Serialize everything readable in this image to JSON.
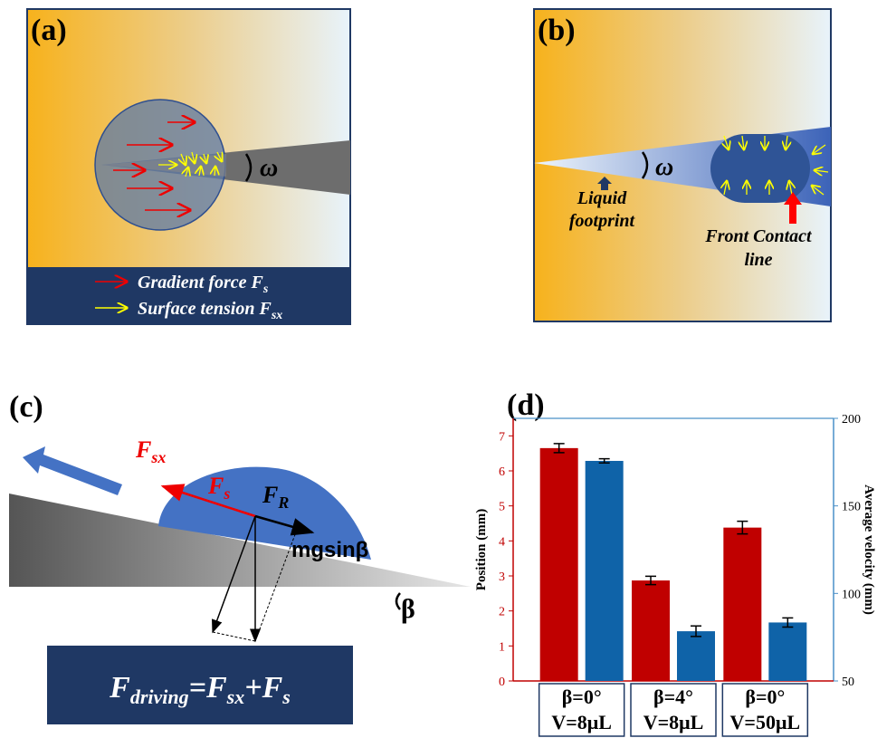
{
  "panels": {
    "a": {
      "label": "(a)",
      "omega": "ω",
      "legend": [
        {
          "text": "Gradient force F",
          "sub": "s"
        },
        {
          "text": "Surface tension F",
          "sub": "sx"
        }
      ]
    },
    "b": {
      "label": "(b)",
      "omega": "ω",
      "footprint": [
        "Liquid",
        "footprint"
      ],
      "contact": [
        "Front Contact",
        "line"
      ]
    },
    "c": {
      "label": "(c)",
      "f_sx": {
        "text": "F",
        "sub": "sx"
      },
      "f_s": {
        "text": "F",
        "sub": "s"
      },
      "f_r": {
        "text": "F",
        "sub": "R"
      },
      "mg": "mgsinβ",
      "beta": "β",
      "formula": [
        {
          "text": "F",
          "sub": "driving"
        },
        {
          "text": "=F",
          "sub": "sx"
        },
        {
          "text": "+F",
          "sub": "s"
        }
      ]
    }
  },
  "chart_data": {
    "type": "bar",
    "title": "(d)",
    "categories": [
      [
        "β=0°",
        "V=8μL"
      ],
      [
        "β=4°",
        "V=8μL"
      ],
      [
        "β=0°",
        "V=50μL"
      ]
    ],
    "y_label": "Position (mm)",
    "y2_label": "Average velocity (mm)",
    "ylim": [
      0,
      7.5
    ],
    "yticks": [
      0,
      1,
      2,
      3,
      4,
      5,
      6,
      7
    ],
    "y2lim": [
      50,
      200
    ],
    "y2ticks": [
      50,
      100,
      150,
      200
    ],
    "series": [
      {
        "color": "#c00000",
        "values": [
          6.65,
          2.87,
          4.38
        ],
        "errors": [
          0.13,
          0.12,
          0.18
        ]
      },
      {
        "color": "#0f63a8",
        "axis": "y2",
        "values": [
          175.7,
          78.4,
          83.4
        ],
        "errors": [
          1.2,
          3,
          2.6
        ]
      }
    ]
  }
}
